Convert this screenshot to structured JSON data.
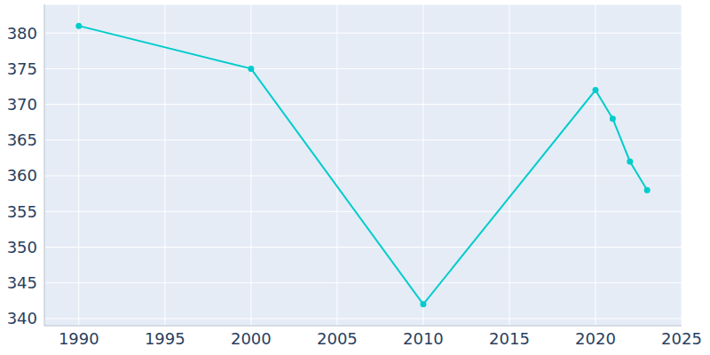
{
  "chart_data": {
    "type": "line",
    "x": [
      1990,
      2000,
      2010,
      2020,
      2021,
      2022,
      2023
    ],
    "values": [
      381,
      375,
      342,
      372,
      368,
      362,
      358
    ],
    "color": "#00cccc",
    "xlim": [
      1988,
      2025
    ],
    "xticks": [
      1990,
      1995,
      2000,
      2005,
      2010,
      2015,
      2020,
      2025
    ],
    "ylim": [
      339,
      384
    ],
    "yticks": [
      340,
      345,
      350,
      355,
      360,
      365,
      370,
      375,
      380
    ],
    "grid": true,
    "marker": "circle"
  }
}
